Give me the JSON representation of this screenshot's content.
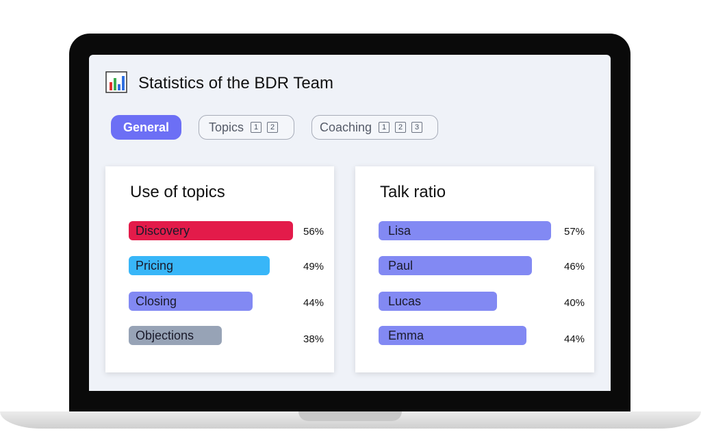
{
  "header": {
    "title": "Statistics of the BDR Team",
    "icon": "bar-chart-icon"
  },
  "tabs": [
    {
      "label": "General",
      "active": true,
      "badges": []
    },
    {
      "label": "Topics",
      "active": false,
      "badges": [
        "1",
        "2"
      ]
    },
    {
      "label": "Coaching",
      "active": false,
      "badges": [
        "1",
        "2",
        "3"
      ]
    }
  ],
  "use_of_topics": {
    "title": "Use of topics",
    "items": [
      {
        "label": "Discovery",
        "value": "56%",
        "color": "#e31b4a"
      },
      {
        "label": "Pricing",
        "value": "49%",
        "color": "#38b6f8"
      },
      {
        "label": "Closing",
        "value": "44%",
        "color": "#8289f3"
      },
      {
        "label": "Objections",
        "value": "38%",
        "color": "#97a3b6"
      }
    ]
  },
  "talk_ratio": {
    "title": "Talk ratio",
    "items": [
      {
        "label": "Lisa",
        "value": "57%",
        "color": "#8289f3"
      },
      {
        "label": "Paul",
        "value": "46%",
        "color": "#8289f3"
      },
      {
        "label": "Lucas",
        "value": "40%",
        "color": "#8289f3"
      },
      {
        "label": "Emma",
        "value": "44%",
        "color": "#8289f3"
      }
    ]
  }
}
